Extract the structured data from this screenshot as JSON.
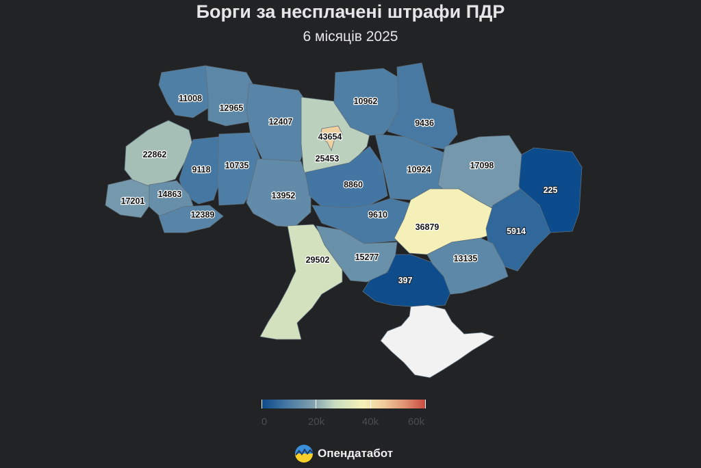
{
  "title": "Борги за несплачені штрафи ПДР",
  "subtitle": "6 місяців 2025",
  "brand": "Опендатабот",
  "legend": {
    "ticks": [
      "0",
      "20k",
      "40k",
      "60k"
    ],
    "min": 0,
    "max": 60000
  },
  "regions": [
    {
      "name": "Volyn",
      "value": 11008
    },
    {
      "name": "Rivne",
      "value": 12965
    },
    {
      "name": "Zhytomyr",
      "value": 12407
    },
    {
      "name": "Kyiv Oblast",
      "value": 25453
    },
    {
      "name": "Kyiv City",
      "value": 43654
    },
    {
      "name": "Chernihiv",
      "value": 10962
    },
    {
      "name": "Sumy",
      "value": 9436
    },
    {
      "name": "Lviv",
      "value": 22862
    },
    {
      "name": "Ternopil",
      "value": 9118
    },
    {
      "name": "Khmelnytskyi",
      "value": 10735
    },
    {
      "name": "Vinnytsia",
      "value": 13952
    },
    {
      "name": "Cherkasy",
      "value": 8860
    },
    {
      "name": "Poltava",
      "value": 10924
    },
    {
      "name": "Kharkiv",
      "value": 17098
    },
    {
      "name": "Luhansk",
      "value": 225
    },
    {
      "name": "Zakarpattia",
      "value": 17201
    },
    {
      "name": "Ivano-Frankivsk",
      "value": 14863
    },
    {
      "name": "Chernivtsi",
      "value": 12389
    },
    {
      "name": "Kirovohrad",
      "value": 9610
    },
    {
      "name": "Dnipropetrovsk",
      "value": 36879
    },
    {
      "name": "Donetsk",
      "value": 5914
    },
    {
      "name": "Odesa",
      "value": 29502
    },
    {
      "name": "Mykolaiv",
      "value": 15277
    },
    {
      "name": "Kherson",
      "value": 397
    },
    {
      "name": "Zaporizhzhia",
      "value": 13135
    }
  ],
  "colors": {
    "background": "#222325",
    "crimea": "#f2f2f2",
    "no_data": "#f2f2f2"
  }
}
